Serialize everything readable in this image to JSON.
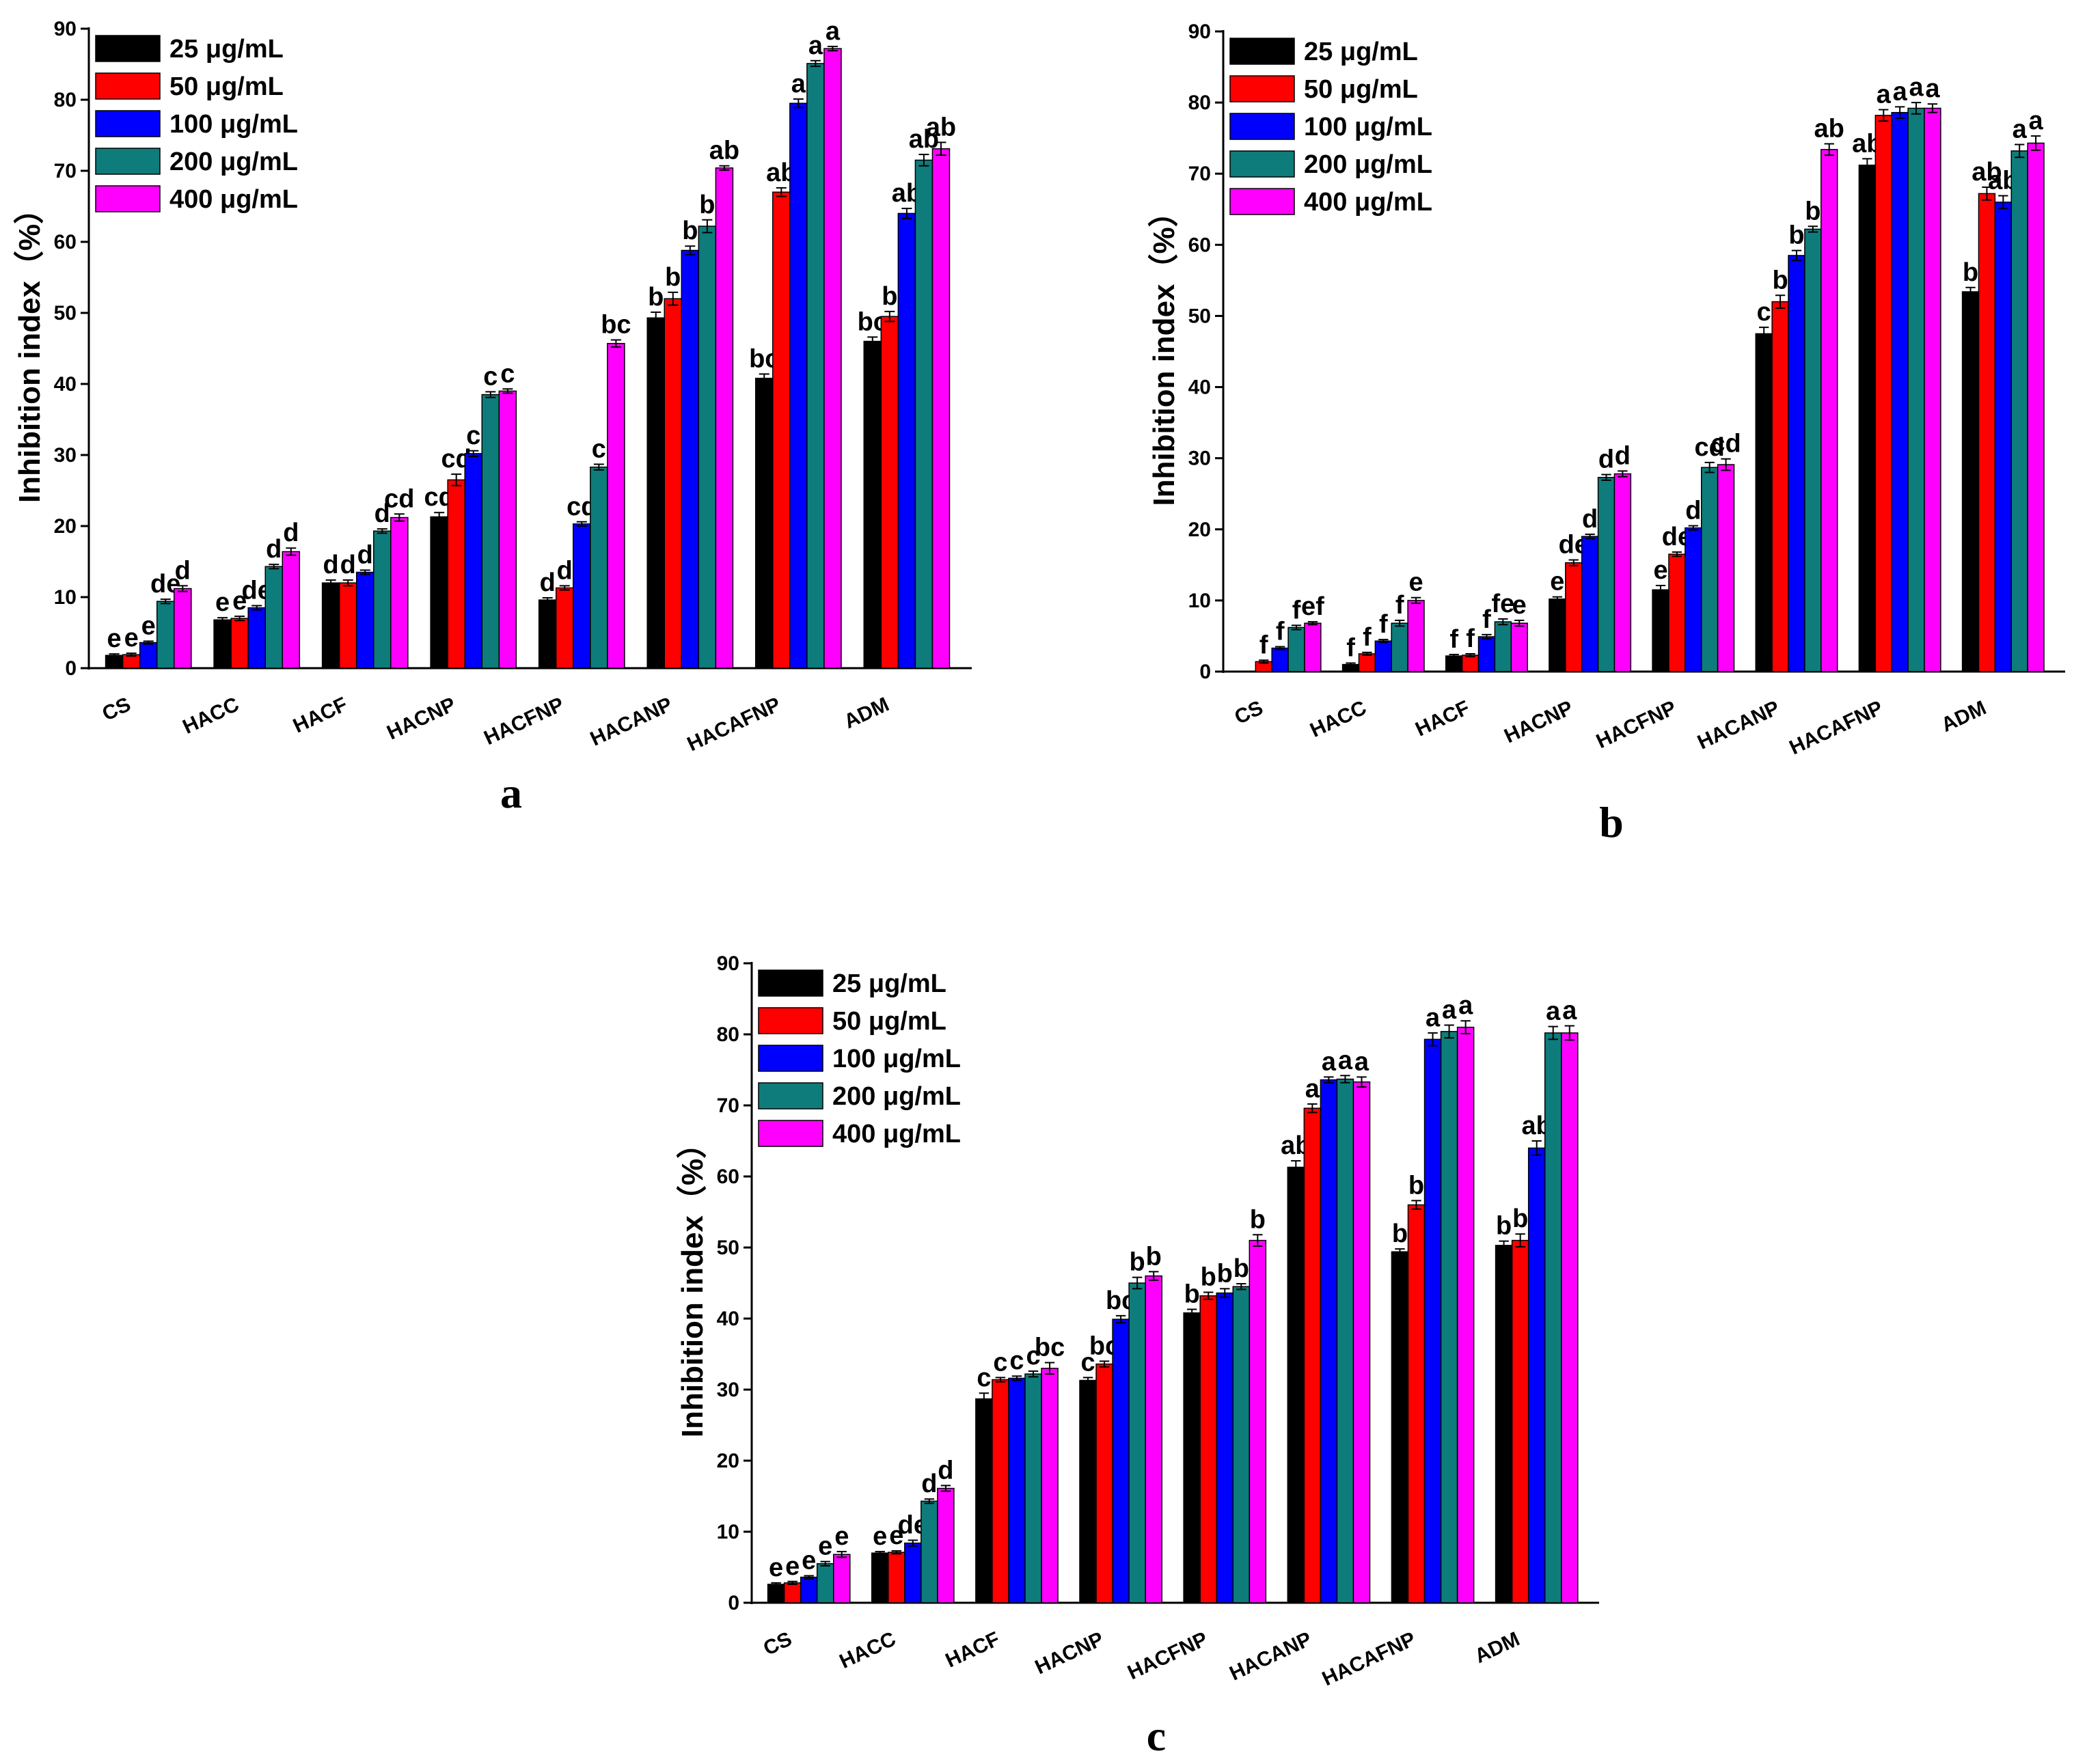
{
  "chart_data": [
    {
      "type": "bar",
      "panel_label": "a",
      "ylabel": "Inhibition index（%）",
      "xlabel": "",
      "ylim": [
        0,
        90
      ],
      "yticks": [
        0,
        10,
        20,
        30,
        40,
        50,
        60,
        70,
        80,
        90
      ],
      "legend_position": "top-left",
      "categories": [
        "CS",
        "HACC",
        "HACF",
        "HACNP",
        "HACFNP",
        "HACANP",
        "HACAFNP",
        "ADM"
      ],
      "series": [
        {
          "name": "25 μg/mL",
          "color": "#000000",
          "values": [
            1.8,
            6.8,
            12.0,
            21.3,
            9.6,
            49.3,
            40.8,
            46.0
          ],
          "errors": [
            0.2,
            0.3,
            0.4,
            0.6,
            0.3,
            0.8,
            0.6,
            0.6
          ],
          "letters": [
            "e",
            "e",
            "d",
            "cd",
            "d",
            "b",
            "bc",
            "bc"
          ]
        },
        {
          "name": "50 μg/mL",
          "color": "#ff0000",
          "values": [
            1.9,
            7.0,
            12.0,
            26.5,
            11.3,
            52.0,
            67.0,
            49.5
          ],
          "errors": [
            0.2,
            0.3,
            0.4,
            0.8,
            0.3,
            0.9,
            0.6,
            0.7
          ],
          "letters": [
            "e",
            "e",
            "d",
            "cd",
            "d",
            "b",
            "ab",
            "b"
          ]
        },
        {
          "name": "100 μg/mL",
          "color": "#0000ff",
          "values": [
            3.6,
            8.5,
            13.5,
            30.2,
            20.3,
            58.8,
            79.5,
            64.0
          ],
          "errors": [
            0.2,
            0.3,
            0.3,
            0.4,
            0.3,
            0.6,
            0.6,
            0.7
          ],
          "letters": [
            "e",
            "de",
            "d",
            "c",
            "cd",
            "b",
            "a",
            "ab"
          ]
        },
        {
          "name": "200 μg/mL",
          "color": "#0e7c7b",
          "values": [
            9.4,
            14.3,
            19.3,
            38.5,
            28.3,
            62.2,
            85.1,
            71.5
          ],
          "errors": [
            0.3,
            0.3,
            0.3,
            0.4,
            0.4,
            0.9,
            0.4,
            0.8
          ],
          "letters": [
            "de",
            "d",
            "d",
            "c",
            "c",
            "b",
            "a",
            "ab"
          ]
        },
        {
          "name": "400 μg/mL",
          "color": "#ff00ff",
          "values": [
            11.2,
            16.4,
            21.2,
            39.0,
            45.7,
            70.4,
            87.2,
            73.1
          ],
          "errors": [
            0.4,
            0.5,
            0.5,
            0.3,
            0.5,
            0.3,
            0.3,
            0.9
          ],
          "letters": [
            "d",
            "d",
            "cd",
            "c",
            "bc",
            "ab",
            "a",
            "ab"
          ]
        }
      ]
    },
    {
      "type": "bar",
      "panel_label": "b",
      "ylabel": "Inhibition index（%）",
      "xlabel": "",
      "ylim": [
        0,
        90
      ],
      "yticks": [
        0,
        10,
        20,
        30,
        40,
        50,
        60,
        70,
        80,
        90
      ],
      "legend_position": "top-left",
      "categories": [
        "CS",
        "HACC",
        "HACF",
        "HACNP",
        "HACFNP",
        "HACANP",
        "HACAFNP",
        "ADM"
      ],
      "series": [
        {
          "name": "25 μg/mL",
          "color": "#000000",
          "values": [
            0,
            1.0,
            2.2,
            10.2,
            11.5,
            47.5,
            71.2,
            53.4
          ],
          "errors": [
            0,
            0.2,
            0.2,
            0.3,
            0.6,
            0.9,
            0.9,
            0.6
          ],
          "letters": [
            "",
            "f",
            "f",
            "e",
            "e",
            "c",
            "ab",
            "b"
          ]
        },
        {
          "name": "50 μg/mL",
          "color": "#ff0000",
          "values": [
            1.4,
            2.5,
            2.3,
            15.3,
            16.5,
            52.0,
            78.2,
            67.2
          ],
          "errors": [
            0.2,
            0.2,
            0.2,
            0.4,
            0.3,
            0.9,
            0.8,
            0.9
          ],
          "letters": [
            "f",
            "f",
            "f",
            "de",
            "de",
            "b",
            "a",
            "ab"
          ]
        },
        {
          "name": "100 μg/mL",
          "color": "#0000ff",
          "values": [
            3.3,
            4.3,
            4.9,
            19.0,
            20.2,
            58.5,
            78.6,
            66.0
          ],
          "errors": [
            0.2,
            0.2,
            0.3,
            0.3,
            0.3,
            0.7,
            0.8,
            0.9
          ],
          "letters": [
            "f",
            "f",
            "f",
            "d",
            "d",
            "b",
            "a",
            "ab"
          ]
        },
        {
          "name": "200 μg/mL",
          "color": "#0e7c7b",
          "values": [
            6.2,
            6.8,
            7.0,
            27.3,
            28.7,
            62.2,
            79.2,
            73.2
          ],
          "errors": [
            0.3,
            0.4,
            0.4,
            0.4,
            0.7,
            0.4,
            0.8,
            0.9
          ],
          "letters": [
            "f",
            "f",
            "fe",
            "d",
            "cd",
            "b",
            "a",
            "a"
          ]
        },
        {
          "name": "400 μg/mL",
          "color": "#ff00ff",
          "values": [
            6.8,
            10.0,
            6.8,
            27.8,
            29.1,
            73.4,
            79.2,
            74.3
          ],
          "errors": [
            0.2,
            0.4,
            0.4,
            0.4,
            0.8,
            0.8,
            0.6,
            1.0
          ],
          "letters": [
            "ef",
            "e",
            "e",
            "d",
            "cd",
            "ab",
            "a",
            "a"
          ]
        }
      ]
    },
    {
      "type": "bar",
      "panel_label": "c",
      "ylabel": "Inhibition index（%）",
      "xlabel": "",
      "ylim": [
        0,
        90
      ],
      "yticks": [
        0,
        10,
        20,
        30,
        40,
        50,
        60,
        70,
        80,
        90
      ],
      "legend_position": "top-left",
      "categories": [
        "CS",
        "HACC",
        "HACF",
        "HACNP",
        "HACFNP",
        "HACANP",
        "HACAFNP",
        "ADM"
      ],
      "series": [
        {
          "name": "25 μg/mL",
          "color": "#000000",
          "values": [
            2.6,
            7.0,
            28.7,
            31.3,
            40.8,
            61.3,
            49.4,
            50.3
          ],
          "errors": [
            0.2,
            0.2,
            0.8,
            0.4,
            0.5,
            0.9,
            0.4,
            0.6
          ],
          "letters": [
            "e",
            "e",
            "c",
            "c",
            "b",
            "ab",
            "b",
            "b"
          ]
        },
        {
          "name": "50 μg/mL",
          "color": "#ff0000",
          "values": [
            2.8,
            7.1,
            31.4,
            33.6,
            43.2,
            69.6,
            56.0,
            51.0
          ],
          "errors": [
            0.2,
            0.2,
            0.3,
            0.4,
            0.5,
            0.6,
            0.6,
            0.9
          ],
          "letters": [
            "e",
            "e",
            "c",
            "bc",
            "b",
            "a",
            "b",
            "b"
          ]
        },
        {
          "name": "100 μg/mL",
          "color": "#0000ff",
          "values": [
            3.6,
            8.4,
            31.6,
            39.9,
            43.6,
            73.6,
            79.3,
            64.0
          ],
          "errors": [
            0.2,
            0.4,
            0.3,
            0.5,
            0.6,
            0.4,
            0.9,
            1.0
          ],
          "letters": [
            "e",
            "de",
            "c",
            "bc",
            "b",
            "a",
            "a",
            "ab"
          ]
        },
        {
          "name": "200 μg/mL",
          "color": "#0e7c7b",
          "values": [
            5.5,
            14.3,
            32.2,
            45.0,
            44.5,
            73.7,
            80.4,
            80.2
          ],
          "errors": [
            0.3,
            0.3,
            0.4,
            0.8,
            0.4,
            0.5,
            0.9,
            0.9
          ],
          "letters": [
            "e",
            "d",
            "c",
            "b",
            "b",
            "a",
            "a",
            "a"
          ]
        },
        {
          "name": "400 μg/mL",
          "color": "#ff00ff",
          "values": [
            6.8,
            16.1,
            33.0,
            46.0,
            51.0,
            73.3,
            81.0,
            80.2
          ],
          "errors": [
            0.4,
            0.4,
            0.8,
            0.6,
            0.8,
            0.7,
            0.9,
            1.0
          ],
          "letters": [
            "e",
            "d",
            "bc",
            "b",
            "b",
            "a",
            "a",
            "a"
          ]
        }
      ]
    }
  ]
}
